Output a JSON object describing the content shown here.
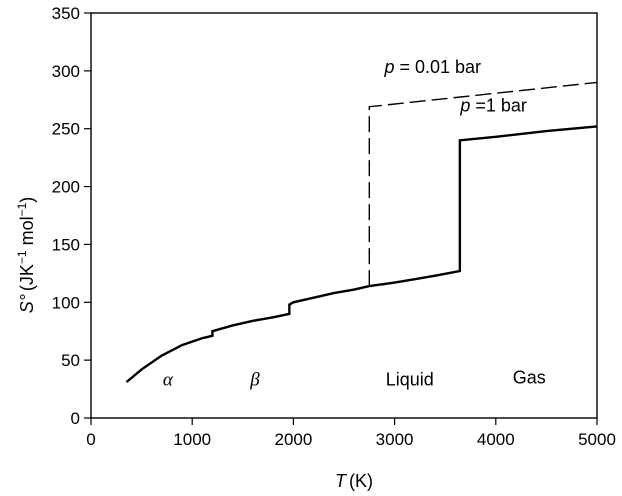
{
  "chart_data": {
    "type": "line",
    "xlabel_var": "T",
    "xlabel_unit": "(K)",
    "ylabel_var": "S°",
    "ylabel_unit_pre": "(JK",
    "ylabel_sup1": "−1",
    "ylabel_unit_mid": " mol",
    "ylabel_sup2": "−1",
    "ylabel_unit_post": ")",
    "xlim": [
      0,
      5000
    ],
    "ylim": [
      0,
      350
    ],
    "xticks": [
      0,
      1000,
      2000,
      3000,
      4000,
      5000
    ],
    "yticks": [
      0,
      50,
      100,
      150,
      200,
      250,
      300,
      350
    ],
    "xtick_labels": [
      "0",
      "1000",
      "2000",
      "3000",
      "4000",
      "5000"
    ],
    "ytick_labels": [
      "0",
      "50",
      "100",
      "150",
      "200",
      "250",
      "300",
      "350"
    ],
    "series": [
      {
        "name": "p = 1 bar",
        "style": "solid",
        "color": "#000000",
        "x": [
          350,
          500,
          700,
          900,
          1100,
          1200,
          1200,
          1400,
          1600,
          1800,
          1960,
          1960,
          2000,
          2200,
          2400,
          2600,
          2750,
          3000,
          3200,
          3400,
          3645,
          3645,
          4000,
          4500,
          5000
        ],
        "y": [
          31,
          42,
          54,
          63,
          69,
          71,
          75,
          80,
          84,
          87,
          90,
          98,
          100,
          104,
          108,
          111,
          114,
          117,
          120,
          123,
          127,
          240,
          243,
          248,
          252
        ]
      },
      {
        "name": "p = 0.01 bar",
        "style": "dashed",
        "color": "#000000",
        "x": [
          2750,
          2750,
          5000
        ],
        "y": [
          114,
          269,
          290
        ]
      }
    ],
    "annotations": [
      {
        "var": "p",
        "text": " = 0.01 bar",
        "x": 2900,
        "y": 298
      },
      {
        "var": "p",
        "text": " =1 bar",
        "x": 3650,
        "y": 265
      }
    ],
    "phase_labels": [
      {
        "text": "α",
        "greek": true,
        "x": 760,
        "y": 28
      },
      {
        "text": "β",
        "greek": true,
        "x": 1620,
        "y": 28
      },
      {
        "text": "Liquid",
        "greek": false,
        "x": 3150,
        "y": 28
      },
      {
        "text": "Gas",
        "greek": false,
        "x": 4330,
        "y": 30
      }
    ]
  }
}
